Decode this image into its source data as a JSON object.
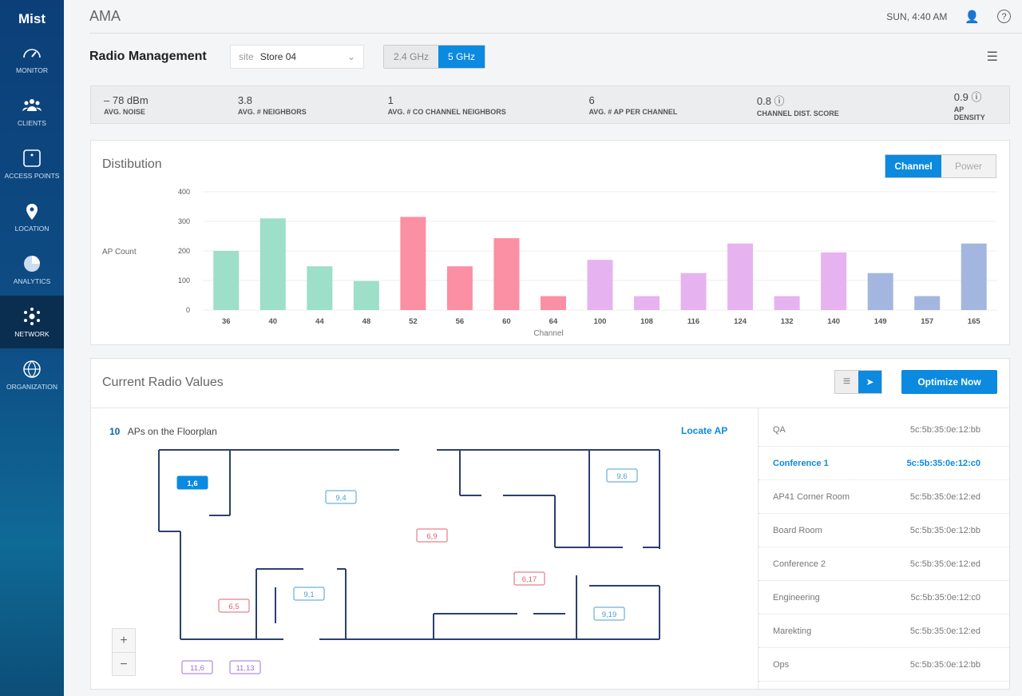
{
  "sidebar": {
    "logo": "Mist",
    "items": [
      {
        "label": "MONITOR",
        "icon": "gauge-icon"
      },
      {
        "label": "CLIENTS",
        "icon": "users-icon"
      },
      {
        "label": "ACCESS POINTS",
        "icon": "access-point-icon"
      },
      {
        "label": "LOCATION",
        "icon": "location-pin-icon"
      },
      {
        "label": "ANALYTICS",
        "icon": "pie-chart-icon"
      },
      {
        "label": "NETWORK",
        "icon": "network-icon",
        "active": true
      },
      {
        "label": "ORGANIZATION",
        "icon": "globe-icon"
      }
    ]
  },
  "header": {
    "title": "AMA",
    "time": "SUN, 4:40 AM"
  },
  "page": {
    "title": "Radio Management",
    "site_label": "site",
    "site_value": "Store 04",
    "bands": [
      "2.4 GHz",
      "5 GHz"
    ],
    "active_band": "5 GHz"
  },
  "stats": [
    {
      "value": "– 78 dBm",
      "label": "AVG. NOISE"
    },
    {
      "value": "3.8",
      "label": "AVG. # NEIGHBORS"
    },
    {
      "value": "1",
      "label": "AVG. # CO CHANNEL NEIGHBORS"
    },
    {
      "value": "6",
      "label": "AVG. # AP PER CHANNEL"
    },
    {
      "value": "0.8 ⓘ",
      "label": "CHANNEL DIST. SCORE"
    },
    {
      "value": "0.9 ⓘ",
      "label": "AP DENSITY"
    }
  ],
  "distribution": {
    "title": "Distibution",
    "toggle": [
      "Channel",
      "Power"
    ],
    "active": "Channel"
  },
  "chart_data": {
    "type": "bar",
    "xlabel": "Channel",
    "ylabel": "AP Count",
    "ylim": [
      0,
      400
    ],
    "yticks": [
      0,
      100,
      200,
      300,
      400
    ],
    "grid": true,
    "categories": [
      "36",
      "40",
      "44",
      "48",
      "52",
      "56",
      "60",
      "64",
      "100",
      "108",
      "116",
      "124",
      "132",
      "140",
      "149",
      "157",
      "165"
    ],
    "values": [
      200,
      310,
      148,
      98,
      315,
      148,
      243,
      47,
      170,
      47,
      125,
      225,
      47,
      195,
      125,
      47,
      225
    ],
    "colors": [
      "#9ddfc8",
      "#9ddfc8",
      "#9ddfc8",
      "#9ddfc8",
      "#fb8fa3",
      "#fb8fa3",
      "#fb8fa3",
      "#fb8fa3",
      "#e6b3f0",
      "#e6b3f0",
      "#e6b3f0",
      "#e6b3f0",
      "#e6b3f0",
      "#e6b3f0",
      "#a3b6e0",
      "#a3b6e0",
      "#a3b6e0"
    ]
  },
  "radio": {
    "title": "Current Radio Values",
    "optimize": "Optimize Now",
    "ap_count": "10",
    "ap_label": "APs on the Floorplan",
    "locate": "Locate AP",
    "aps": [
      {
        "label": "1,6",
        "color": "#0b8ae0",
        "selected": true
      },
      {
        "label": "9,4",
        "color": "#4a9fd0"
      },
      {
        "label": "6,9",
        "color": "#e06070"
      },
      {
        "label": "9,6",
        "color": "#4a9fd0"
      },
      {
        "label": "6,17",
        "color": "#e06070"
      },
      {
        "label": "9,1",
        "color": "#4a9fd0"
      },
      {
        "label": "6,5",
        "color": "#e06070"
      },
      {
        "label": "9,19",
        "color": "#4a9fd0"
      },
      {
        "label": "11,6",
        "color": "#a070d0"
      },
      {
        "label": "11,13",
        "color": "#a070d0"
      }
    ],
    "list": [
      {
        "name": "QA",
        "mac": "5c:5b:35:0e:12:bb"
      },
      {
        "name": "Conference 1",
        "mac": "5c:5b:35:0e:12:c0",
        "selected": true
      },
      {
        "name": "AP41 Corner Room",
        "mac": "5c:5b:35:0e:12:ed"
      },
      {
        "name": "Board Room",
        "mac": "5c:5b:35:0e:12:bb"
      },
      {
        "name": "Conference 2",
        "mac": "5c:5b:35:0e:12:ed"
      },
      {
        "name": "Engineering",
        "mac": "5c:5b:35:0e:12:c0"
      },
      {
        "name": "Marekting",
        "mac": "5c:5b:35:0e:12:ed"
      },
      {
        "name": "Ops",
        "mac": "5c:5b:35:0e:12:bb"
      }
    ]
  },
  "colors": {
    "accent": "#0b8ae0"
  }
}
